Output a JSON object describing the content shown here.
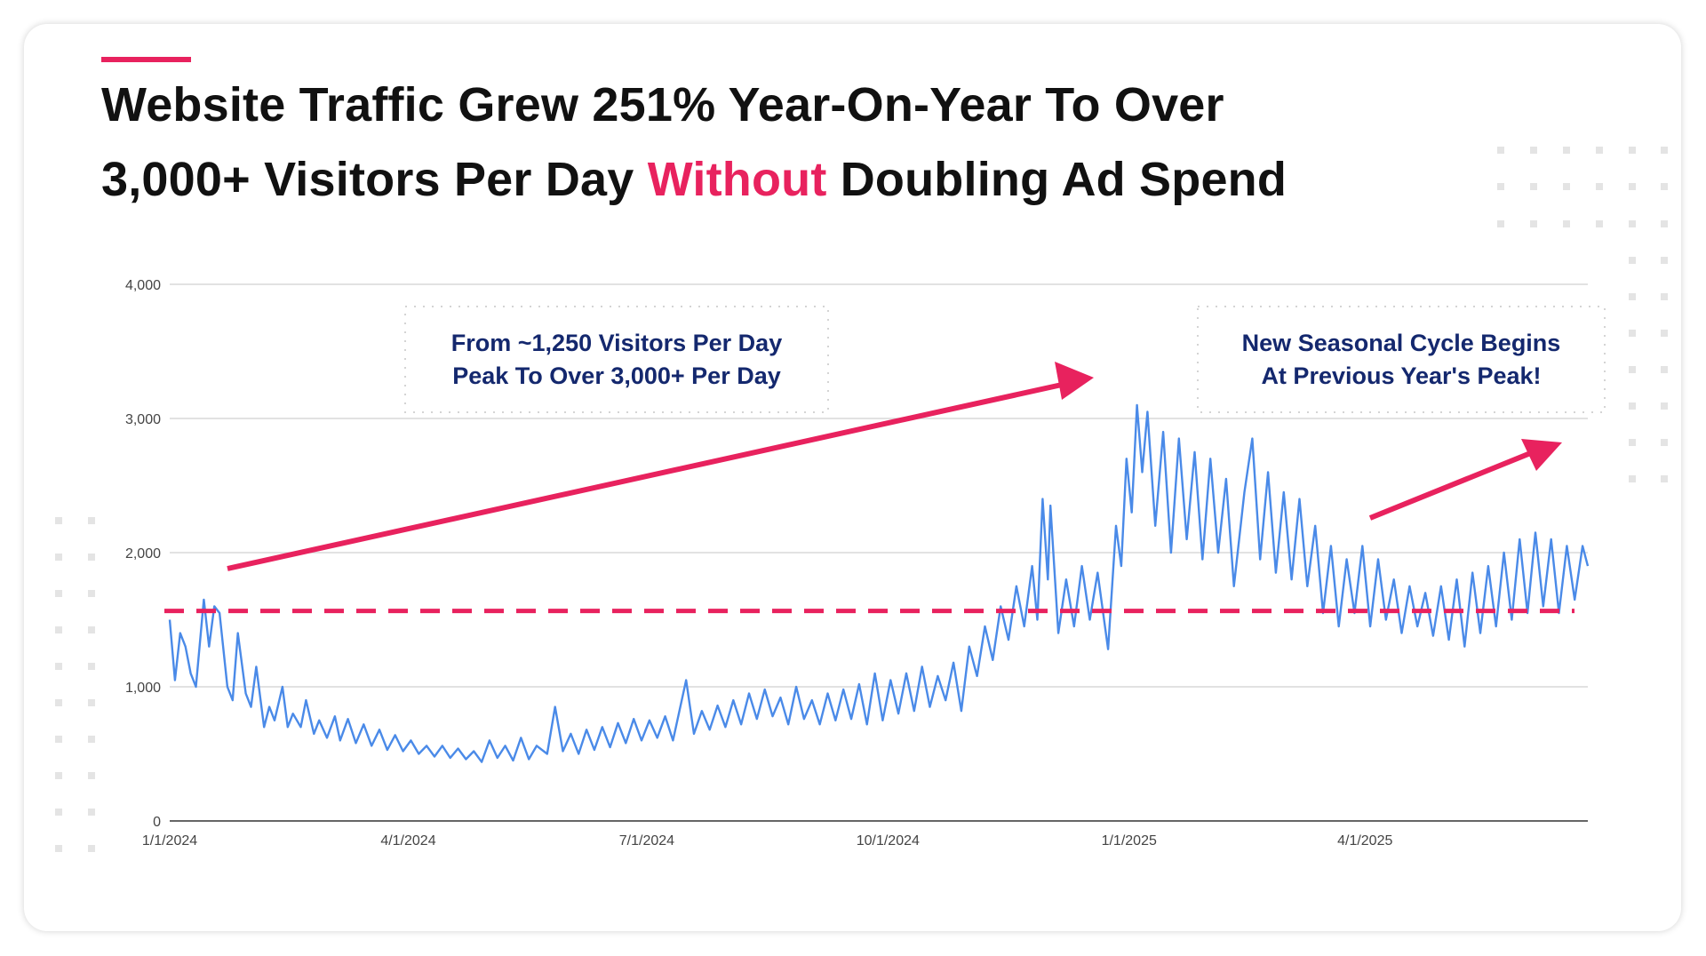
{
  "title": {
    "line1": "Website Traffic Grew 251% Year-On-Year To Over",
    "line2_before": "3,000+ Visitors Per Day ",
    "line2_highlight": "Without",
    "line2_after": " Doubling Ad Spend"
  },
  "colors": {
    "accent": "#e8225e",
    "series": "#4a8ae8",
    "annotation_text": "#14286e",
    "grid": "#d9d9d9"
  },
  "annotations": [
    {
      "line1": "From ~1,250 Visitors Per Day",
      "line2": "Peak To Over 3,000+ Per Day"
    },
    {
      "line1": "New Seasonal Cycle Begins",
      "line2": "At Previous Year's Peak!"
    }
  ],
  "chart_data": {
    "type": "line",
    "title": "",
    "xlabel": "",
    "ylabel": "",
    "ylim": [
      0,
      4000
    ],
    "xlim": [
      "2024-01-01",
      "2025-06-25"
    ],
    "grid": true,
    "y_ticks": [
      "0",
      "1,000",
      "2,000",
      "3,000",
      "4,000"
    ],
    "x_ticks": [
      "1/1/2024",
      "4/1/2024",
      "7/1/2024",
      "10/1/2024",
      "1/1/2025",
      "4/1/2025"
    ],
    "reference_line": {
      "value": 1565,
      "style": "dashed"
    },
    "series": [
      {
        "x": [
          "2024-01-01",
          "2024-01-03",
          "2024-01-05",
          "2024-01-07",
          "2024-01-09",
          "2024-01-11",
          "2024-01-14",
          "2024-01-16",
          "2024-01-18",
          "2024-01-20",
          "2024-01-23",
          "2024-01-25",
          "2024-01-27",
          "2024-01-30",
          "2024-02-01",
          "2024-02-03",
          "2024-02-06",
          "2024-02-08",
          "2024-02-10",
          "2024-02-13",
          "2024-02-15",
          "2024-02-17",
          "2024-02-20",
          "2024-02-22",
          "2024-02-25",
          "2024-02-27",
          "2024-03-01",
          "2024-03-04",
          "2024-03-06",
          "2024-03-09",
          "2024-03-12",
          "2024-03-15",
          "2024-03-18",
          "2024-03-21",
          "2024-03-24",
          "2024-03-27",
          "2024-03-30",
          "2024-04-02",
          "2024-04-05",
          "2024-04-08",
          "2024-04-11",
          "2024-04-14",
          "2024-04-17",
          "2024-04-20",
          "2024-04-23",
          "2024-04-26",
          "2024-04-29",
          "2024-05-02",
          "2024-05-05",
          "2024-05-08",
          "2024-05-11",
          "2024-05-14",
          "2024-05-17",
          "2024-05-20",
          "2024-05-24",
          "2024-05-27",
          "2024-05-30",
          "2024-06-02",
          "2024-06-05",
          "2024-06-08",
          "2024-06-11",
          "2024-06-14",
          "2024-06-17",
          "2024-06-20",
          "2024-06-23",
          "2024-06-26",
          "2024-06-29",
          "2024-07-02",
          "2024-07-05",
          "2024-07-08",
          "2024-07-11",
          "2024-07-16",
          "2024-07-19",
          "2024-07-22",
          "2024-07-25",
          "2024-07-28",
          "2024-07-31",
          "2024-08-03",
          "2024-08-06",
          "2024-08-09",
          "2024-08-12",
          "2024-08-15",
          "2024-08-18",
          "2024-08-21",
          "2024-08-24",
          "2024-08-27",
          "2024-08-30",
          "2024-09-02",
          "2024-09-05",
          "2024-09-08",
          "2024-09-11",
          "2024-09-14",
          "2024-09-17",
          "2024-09-20",
          "2024-09-23",
          "2024-09-26",
          "2024-09-29",
          "2024-10-02",
          "2024-10-05",
          "2024-10-08",
          "2024-10-11",
          "2024-10-14",
          "2024-10-17",
          "2024-10-20",
          "2024-10-23",
          "2024-10-26",
          "2024-10-29",
          "2024-11-01",
          "2024-11-04",
          "2024-11-07",
          "2024-11-10",
          "2024-11-13",
          "2024-11-16",
          "2024-11-19",
          "2024-11-22",
          "2024-11-25",
          "2024-11-27",
          "2024-11-29",
          "2024-12-01",
          "2024-12-02",
          "2024-12-05",
          "2024-12-08",
          "2024-12-11",
          "2024-12-14",
          "2024-12-17",
          "2024-12-20",
          "2024-12-24",
          "2024-12-27",
          "2024-12-29",
          "2024-12-31",
          "2025-01-02",
          "2025-01-04",
          "2025-01-06",
          "2025-01-08",
          "2025-01-11",
          "2025-01-14",
          "2025-01-17",
          "2025-01-20",
          "2025-01-23",
          "2025-01-26",
          "2025-01-29",
          "2025-02-01",
          "2025-02-04",
          "2025-02-07",
          "2025-02-10",
          "2025-02-14",
          "2025-02-17",
          "2025-02-20",
          "2025-02-23",
          "2025-02-26",
          "2025-03-01",
          "2025-03-04",
          "2025-03-07",
          "2025-03-10",
          "2025-03-13",
          "2025-03-16",
          "2025-03-19",
          "2025-03-22",
          "2025-03-25",
          "2025-03-28",
          "2025-03-31",
          "2025-04-03",
          "2025-04-06",
          "2025-04-09",
          "2025-04-12",
          "2025-04-15",
          "2025-04-18",
          "2025-04-21",
          "2025-04-24",
          "2025-04-27",
          "2025-04-30",
          "2025-05-03",
          "2025-05-06",
          "2025-05-09",
          "2025-05-12",
          "2025-05-15",
          "2025-05-18",
          "2025-05-21",
          "2025-05-24",
          "2025-05-27",
          "2025-05-30",
          "2025-06-02",
          "2025-06-05",
          "2025-06-08",
          "2025-06-11",
          "2025-06-14",
          "2025-06-17",
          "2025-06-20",
          "2025-06-23",
          "2025-06-25"
        ],
        "y": [
          1500,
          1050,
          1400,
          1300,
          1100,
          1000,
          1650,
          1300,
          1600,
          1550,
          1000,
          900,
          1400,
          950,
          850,
          1150,
          700,
          850,
          750,
          1000,
          700,
          800,
          700,
          900,
          650,
          750,
          620,
          780,
          600,
          760,
          580,
          720,
          560,
          680,
          530,
          640,
          520,
          600,
          500,
          560,
          480,
          560,
          470,
          540,
          460,
          520,
          440,
          600,
          470,
          560,
          450,
          620,
          460,
          560,
          500,
          850,
          520,
          650,
          500,
          680,
          530,
          700,
          550,
          730,
          580,
          760,
          600,
          750,
          620,
          780,
          600,
          1050,
          650,
          820,
          680,
          860,
          700,
          900,
          720,
          950,
          760,
          980,
          780,
          920,
          720,
          1000,
          760,
          900,
          720,
          950,
          750,
          980,
          760,
          1020,
          720,
          1100,
          750,
          1050,
          800,
          1100,
          820,
          1150,
          850,
          1080,
          900,
          1180,
          820,
          1300,
          1080,
          1450,
          1200,
          1600,
          1350,
          1750,
          1450,
          1900,
          1500,
          2400,
          1800,
          2350,
          1400,
          1800,
          1450,
          1900,
          1500,
          1850,
          1280,
          2200,
          1900,
          2700,
          2300,
          3100,
          2600,
          3050,
          2200,
          2900,
          2000,
          2850,
          2100,
          2750,
          1950,
          2700,
          2000,
          2550,
          1750,
          2450,
          2850,
          1950,
          2600,
          1850,
          2450,
          1800,
          2400,
          1750,
          2200,
          1550,
          2050,
          1450,
          1950,
          1550,
          2050,
          1450,
          1950,
          1500,
          1800,
          1400,
          1750,
          1450,
          1700,
          1380,
          1750,
          1350,
          1800,
          1300,
          1850,
          1400,
          1900,
          1450,
          2000,
          1500,
          2100,
          1550,
          2150,
          1600,
          2100,
          1550,
          2050,
          1650,
          2050,
          1900
        ]
      }
    ]
  }
}
